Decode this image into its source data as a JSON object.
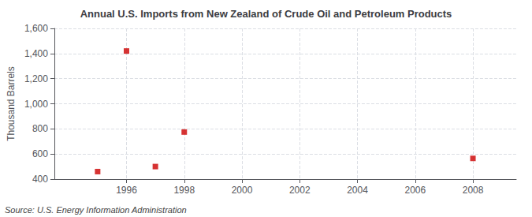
{
  "chart_data": {
    "type": "scatter",
    "title": "Annual U.S. Imports from New Zealand of Crude Oil and Petroleum Products",
    "ylabel": "Thousand Barrels",
    "annotations": [
      "Source: U.S. Energy Information Administration"
    ],
    "x": [
      1995,
      1996,
      1997,
      1998,
      2008
    ],
    "values": [
      460,
      1420,
      500,
      775,
      565
    ],
    "color": "#cc0000",
    "marker": "square",
    "xlim": [
      1993.5,
      2009.5
    ],
    "xticks": [
      1996,
      1998,
      2000,
      2002,
      2004,
      2006,
      2008
    ],
    "ylim": [
      400,
      1600
    ],
    "yticks": [
      400,
      600,
      800,
      {
        "value": 1000,
        "label": "1,000"
      },
      {
        "value": 1200,
        "label": "1,200"
      },
      {
        "value": 1400,
        "label": "1,400"
      },
      {
        "value": 1600,
        "label": "1,600"
      }
    ],
    "grid": true
  }
}
